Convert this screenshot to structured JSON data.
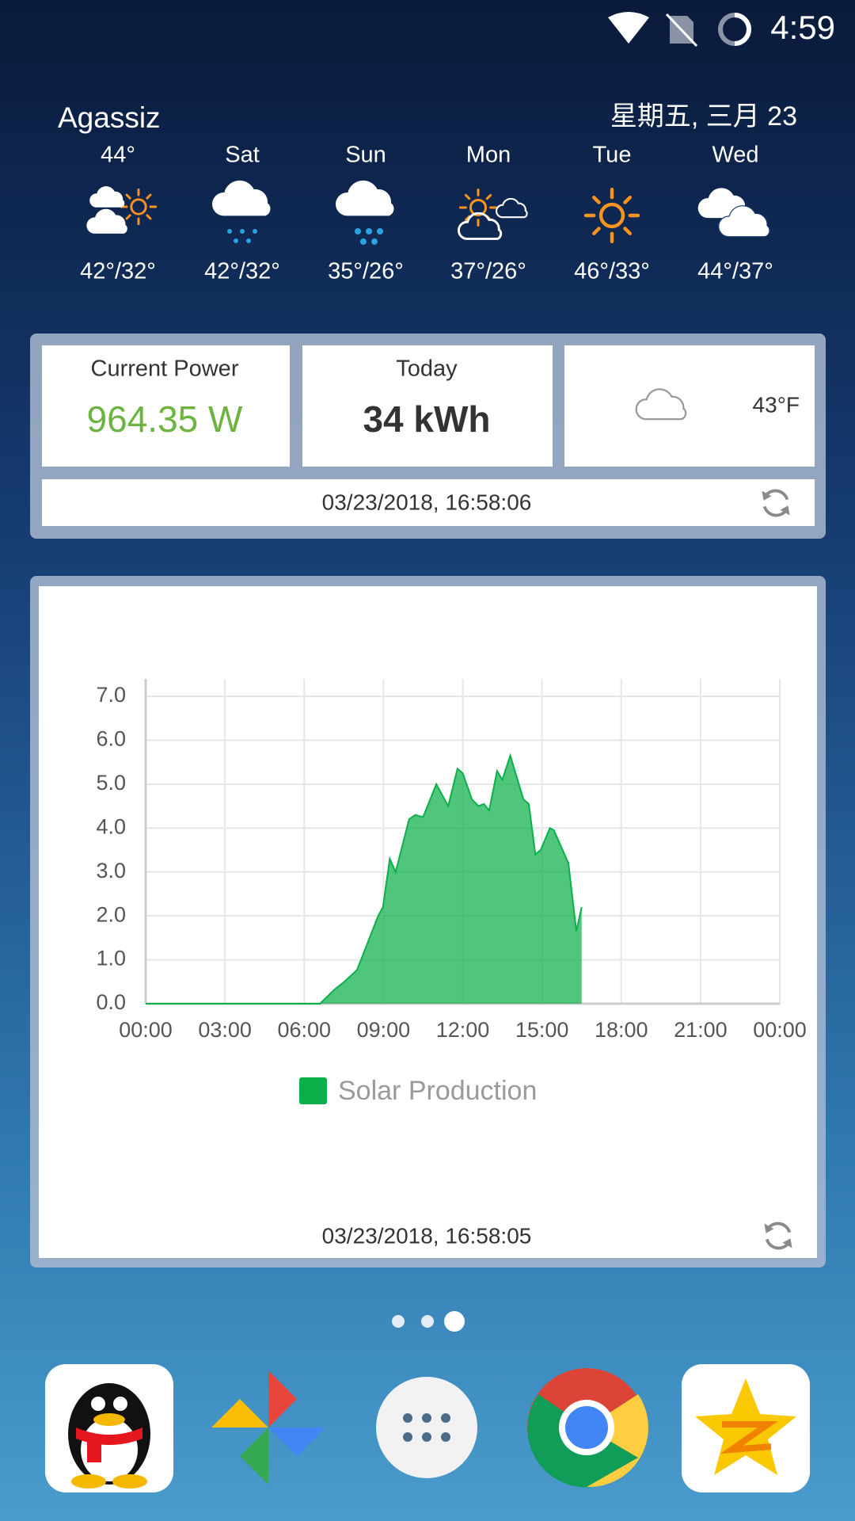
{
  "status_bar": {
    "time": "4:59"
  },
  "weather": {
    "location": "Agassiz",
    "date": "星期五, 三月 23",
    "forecast": [
      {
        "day": "44°",
        "temps": "42°/32°"
      },
      {
        "day": "Sat",
        "temps": "42°/32°"
      },
      {
        "day": "Sun",
        "temps": "35°/26°"
      },
      {
        "day": "Mon",
        "temps": "37°/26°"
      },
      {
        "day": "Tue",
        "temps": "46°/33°"
      },
      {
        "day": "Wed",
        "temps": "44°/37°"
      }
    ]
  },
  "power_widget": {
    "current_power_label": "Current Power",
    "current_power": "964.35 W",
    "today_label": "Today",
    "today_energy": "34 kWh",
    "temperature": "43°F",
    "updated": "03/23/2018, 16:58:06"
  },
  "chart_data": {
    "type": "area",
    "x": [
      0,
      6.6,
      7.16,
      7.52,
      8.0,
      8.8,
      8.98,
      9.24,
      9.46,
      9.97,
      10.2,
      10.5,
      11.0,
      11.45,
      11.8,
      12.0,
      12.35,
      12.6,
      12.8,
      13.0,
      13.3,
      13.5,
      13.8,
      14.3,
      14.5,
      14.75,
      14.95,
      15.3,
      15.45,
      16.0,
      16.3,
      16.5
    ],
    "series": [
      {
        "name": "Solar Production",
        "color": "#0cb04a",
        "values": [
          0,
          0,
          0.33,
          0.5,
          0.77,
          2.0,
          2.2,
          3.3,
          3.0,
          4.2,
          4.3,
          4.25,
          5.0,
          4.5,
          5.35,
          5.25,
          4.65,
          4.5,
          4.55,
          4.4,
          5.3,
          5.1,
          5.65,
          4.65,
          4.55,
          3.4,
          3.5,
          4.0,
          3.95,
          3.2,
          1.65,
          2.2
        ]
      }
    ],
    "xlim": [
      0,
      24
    ],
    "ylim": [
      0,
      7
    ],
    "xticks": [
      {
        "value": 0,
        "label": "00:00"
      },
      {
        "value": 3,
        "label": "03:00"
      },
      {
        "value": 6,
        "label": "06:00"
      },
      {
        "value": 9,
        "label": "09:00"
      },
      {
        "value": 12,
        "label": "12:00"
      },
      {
        "value": 15,
        "label": "15:00"
      },
      {
        "value": 18,
        "label": "18:00"
      },
      {
        "value": 21,
        "label": "21:00"
      },
      {
        "value": 24,
        "label": "00:00"
      }
    ],
    "yticks": [
      {
        "value": 0,
        "label": "0.0"
      },
      {
        "value": 1,
        "label": "1.0"
      },
      {
        "value": 2,
        "label": "2.0"
      },
      {
        "value": 3,
        "label": "3.0"
      },
      {
        "value": 4,
        "label": "4.0"
      },
      {
        "value": 5,
        "label": "5.0"
      },
      {
        "value": 6,
        "label": "6.0"
      },
      {
        "value": 7,
        "label": "7.0"
      }
    ],
    "grid": true,
    "legend": "bottom"
  },
  "chart_widget": {
    "updated": "03/23/2018, 16:58:05"
  }
}
